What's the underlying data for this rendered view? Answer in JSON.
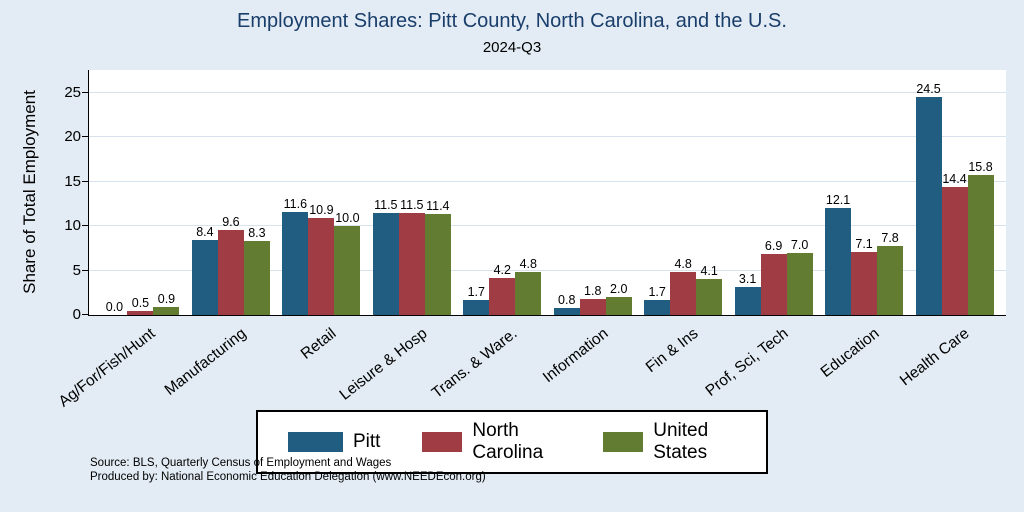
{
  "title": "Employment Shares: Pitt County, North Carolina, and the U.S.",
  "subtitle": "2024-Q3",
  "ylabel": "Share of Total Employment",
  "source_line1": "Source: BLS, Quarterly Census of Employment and Wages",
  "source_line2": "Produced by: National Economic Education Delegation (www.NEEDEcon.org)",
  "colors": {
    "background": "#e3ecf4",
    "plot_background": "#ffffff",
    "gridline": "#d6e3ee",
    "title": "#1a3e6b",
    "pitt": "#205d80",
    "north_carolina": "#a03c44",
    "united_states": "#627d32"
  },
  "chart_data": {
    "type": "bar",
    "categories": [
      "Ag/For/Fish/Hunt",
      "Manufacturing",
      "Retail",
      "Leisure & Hosp",
      "Trans. & Ware.",
      "Information",
      "Fin & Ins",
      "Prof, Sci, Tech",
      "Education",
      "Health Care"
    ],
    "series": [
      {
        "name": "Pitt",
        "color": "#205d80",
        "values": [
          0.0,
          8.4,
          11.6,
          11.5,
          1.7,
          0.8,
          1.7,
          3.1,
          12.1,
          24.5
        ]
      },
      {
        "name": "North Carolina",
        "color": "#a03c44",
        "values": [
          0.5,
          9.6,
          10.9,
          11.5,
          4.2,
          1.8,
          4.8,
          6.9,
          7.1,
          14.4
        ]
      },
      {
        "name": "United States",
        "color": "#627d32",
        "values": [
          0.9,
          8.3,
          10.0,
          11.4,
          4.8,
          2.0,
          4.1,
          7.0,
          7.8,
          15.8
        ]
      }
    ],
    "title": "Employment Shares: Pitt County, North Carolina, and the U.S.",
    "subtitle": "2024-Q3",
    "xlabel": "",
    "ylabel": "Share of Total Employment",
    "yticks": [
      0,
      5,
      10,
      15,
      20,
      25
    ],
    "ylim": [
      0,
      27.6
    ],
    "grid": true,
    "value_labels": true,
    "legend_position": "bottom"
  }
}
